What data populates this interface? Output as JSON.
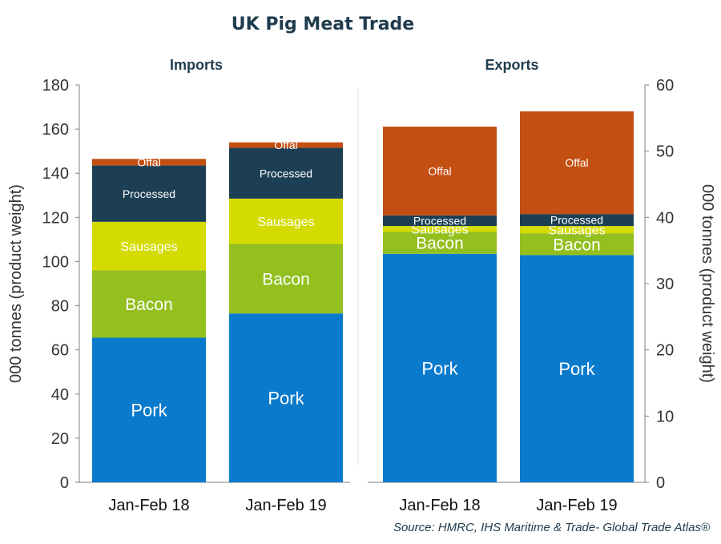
{
  "page": {
    "title": "UK Pig Meat  Trade",
    "source": "Source: HMRC, IHS Maritime & Trade- Global Trade Atlas®"
  },
  "chart_data": [
    {
      "type": "bar",
      "stacked": true,
      "title": "Imports",
      "ylabel": "000 tonnes  (product weight)",
      "ylim": [
        0,
        180
      ],
      "yticks": [
        0,
        20,
        40,
        60,
        80,
        100,
        120,
        140,
        160,
        180
      ],
      "axis_side": "left",
      "categories": [
        "Jan-Feb 18",
        "Jan-Feb 19"
      ],
      "series": [
        {
          "name": "Pork",
          "color": "#0a7bcc",
          "values": [
            65.5,
            76.5
          ]
        },
        {
          "name": "Bacon",
          "color": "#93bf1f",
          "values": [
            30.5,
            31.5
          ]
        },
        {
          "name": "Sausages",
          "color": "#d4db00",
          "values": [
            22,
            20.5
          ]
        },
        {
          "name": "Processed",
          "color": "#1c3f54",
          "values": [
            25.5,
            23
          ]
        },
        {
          "name": "Offal",
          "color": "#c44f12",
          "values": [
            3,
            2.5
          ]
        }
      ]
    },
    {
      "type": "bar",
      "stacked": true,
      "title": "Exports",
      "ylabel": "000 tonnes (product weight)",
      "ylim": [
        0,
        60
      ],
      "yticks": [
        0,
        10,
        20,
        30,
        40,
        50,
        60
      ],
      "axis_side": "right",
      "categories": [
        "Jan-Feb 18",
        "Jan-Feb 19"
      ],
      "series": [
        {
          "name": "Pork",
          "color": "#0a7bcc",
          "values": [
            34.5,
            34.3
          ]
        },
        {
          "name": "Bacon",
          "color": "#93bf1f",
          "values": [
            3.3,
            3.3
          ]
        },
        {
          "name": "Sausages",
          "color": "#d4db00",
          "values": [
            0.9,
            1.1
          ]
        },
        {
          "name": "Processed",
          "color": "#1c3f54",
          "values": [
            1.6,
            1.8
          ]
        },
        {
          "name": "Offal",
          "color": "#c44f12",
          "values": [
            13.4,
            15.5
          ]
        }
      ]
    }
  ]
}
